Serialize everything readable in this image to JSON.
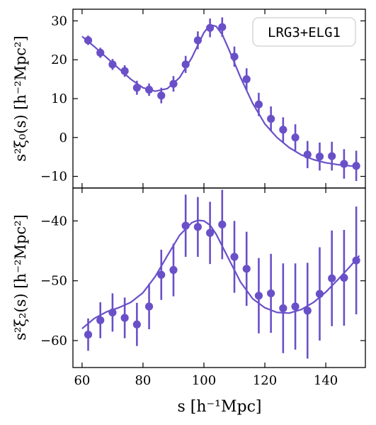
{
  "colors": {
    "series": "#6a50c8",
    "axis": "#000000",
    "legend_border": "#cfcfcf",
    "background": "#ffffff"
  },
  "chart_data": [
    {
      "type": "scatter",
      "panel": "top",
      "legend": {
        "label": "LRG3+ELG1",
        "placement": "top-right"
      },
      "ylabel": "s²ξ₀(s) [h⁻²Mpc²]",
      "xlim": [
        57,
        153
      ],
      "ylim": [
        -13,
        33
      ],
      "x_ticks": [
        60,
        80,
        100,
        120,
        140
      ],
      "y_ticks": [
        -10,
        0,
        10,
        20,
        30
      ],
      "y_tick_labels": [
        "−10",
        "0",
        "10",
        "20",
        "30"
      ],
      "series": [
        {
          "points": [
            {
              "x": 62,
              "y": 25.0,
              "err": 1.2
            },
            {
              "x": 66,
              "y": 21.8,
              "err": 1.3
            },
            {
              "x": 70,
              "y": 18.8,
              "err": 1.4
            },
            {
              "x": 74,
              "y": 17.1,
              "err": 1.5
            },
            {
              "x": 78,
              "y": 12.8,
              "err": 1.8
            },
            {
              "x": 82,
              "y": 12.3,
              "err": 1.6
            },
            {
              "x": 86,
              "y": 10.8,
              "err": 2.0
            },
            {
              "x": 90,
              "y": 13.8,
              "err": 2.0
            },
            {
              "x": 94,
              "y": 18.8,
              "err": 2.2
            },
            {
              "x": 98,
              "y": 25.0,
              "err": 2.3
            },
            {
              "x": 102,
              "y": 28.2,
              "err": 2.4
            },
            {
              "x": 106,
              "y": 28.4,
              "err": 2.5
            },
            {
              "x": 110,
              "y": 20.8,
              "err": 2.6
            },
            {
              "x": 114,
              "y": 15.0,
              "err": 2.8
            },
            {
              "x": 118,
              "y": 8.5,
              "err": 3.0
            },
            {
              "x": 122,
              "y": 4.8,
              "err": 3.2
            },
            {
              "x": 126,
              "y": 2.0,
              "err": 3.2
            },
            {
              "x": 130,
              "y": 0.0,
              "err": 3.4
            },
            {
              "x": 134,
              "y": -4.4,
              "err": 3.5
            },
            {
              "x": 138,
              "y": -4.9,
              "err": 3.6
            },
            {
              "x": 142,
              "y": -4.8,
              "err": 3.7
            },
            {
              "x": 146,
              "y": -6.8,
              "err": 3.8
            },
            {
              "x": 150,
              "y": -7.3,
              "err": 3.9
            }
          ],
          "model": [
            [
              60,
              26.0
            ],
            [
              64,
              23.4
            ],
            [
              68,
              20.6
            ],
            [
              72,
              17.8
            ],
            [
              76,
              15.0
            ],
            [
              80,
              12.8
            ],
            [
              84,
              11.9
            ],
            [
              88,
              12.6
            ],
            [
              92,
              15.4
            ],
            [
              96,
              20.5
            ],
            [
              100,
              27.0
            ],
            [
              102,
              29.0
            ],
            [
              104,
              28.6
            ],
            [
              106,
              26.5
            ],
            [
              108,
              23.0
            ],
            [
              112,
              15.5
            ],
            [
              116,
              8.8
            ],
            [
              120,
              3.5
            ],
            [
              124,
              0.0
            ],
            [
              128,
              -2.6
            ],
            [
              132,
              -4.5
            ],
            [
              136,
              -5.7
            ],
            [
              140,
              -6.5
            ],
            [
              144,
              -7.0
            ],
            [
              148,
              -7.3
            ],
            [
              151,
              -7.4
            ]
          ]
        }
      ]
    },
    {
      "type": "scatter",
      "panel": "bottom",
      "ylabel": "s²ξ₂(s) [h⁻²Mpc²]",
      "xlabel": "s [h⁻¹Mpc]",
      "xlim": [
        57,
        153
      ],
      "ylim": [
        -64.5,
        -34.5
      ],
      "x_ticks": [
        60,
        80,
        100,
        120,
        140
      ],
      "x_tick_labels": [
        "60",
        "80",
        "100",
        "120",
        "140"
      ],
      "y_ticks": [
        -60,
        -50,
        -40
      ],
      "y_tick_labels": [
        "−60",
        "−50",
        "−40"
      ],
      "series": [
        {
          "points": [
            {
              "x": 62,
              "y": -59.0,
              "err": 2.7
            },
            {
              "x": 66,
              "y": -56.6,
              "err": 3.0
            },
            {
              "x": 70,
              "y": -55.3,
              "err": 3.2
            },
            {
              "x": 74,
              "y": -56.2,
              "err": 3.4
            },
            {
              "x": 78,
              "y": -57.3,
              "err": 3.6
            },
            {
              "x": 82,
              "y": -54.3,
              "err": 3.8
            },
            {
              "x": 86,
              "y": -49.0,
              "err": 4.2
            },
            {
              "x": 90,
              "y": -48.2,
              "err": 4.4
            },
            {
              "x": 94,
              "y": -40.8,
              "err": 5.2
            },
            {
              "x": 98,
              "y": -41.0,
              "err": 5.0
            },
            {
              "x": 102,
              "y": -42.0,
              "err": 5.2
            },
            {
              "x": 106,
              "y": -40.6,
              "err": 5.8
            },
            {
              "x": 110,
              "y": -46.0,
              "err": 6.0
            },
            {
              "x": 114,
              "y": -48.0,
              "err": 6.2
            },
            {
              "x": 118,
              "y": -52.5,
              "err": 6.3
            },
            {
              "x": 122,
              "y": -52.1,
              "err": 6.6
            },
            {
              "x": 126,
              "y": -54.6,
              "err": 7.5
            },
            {
              "x": 130,
              "y": -54.3,
              "err": 7.2
            },
            {
              "x": 134,
              "y": -55.0,
              "err": 8.0
            },
            {
              "x": 138,
              "y": -52.2,
              "err": 7.8
            },
            {
              "x": 142,
              "y": -49.6,
              "err": 8.0
            },
            {
              "x": 146,
              "y": -49.5,
              "err": 8.0
            },
            {
              "x": 150,
              "y": -46.6,
              "err": 9.0
            }
          ],
          "model": [
            [
              60,
              -58.0
            ],
            [
              64,
              -56.3
            ],
            [
              68,
              -55.2
            ],
            [
              72,
              -54.5
            ],
            [
              76,
              -53.6
            ],
            [
              80,
              -52.0
            ],
            [
              84,
              -49.3
            ],
            [
              88,
              -45.8
            ],
            [
              92,
              -42.4
            ],
            [
              96,
              -40.3
            ],
            [
              98,
              -39.9
            ],
            [
              100,
              -40.0
            ],
            [
              102,
              -40.7
            ],
            [
              104,
              -42.2
            ],
            [
              108,
              -46.2
            ],
            [
              112,
              -50.2
            ],
            [
              116,
              -53.0
            ],
            [
              120,
              -54.5
            ],
            [
              124,
              -55.3
            ],
            [
              128,
              -55.4
            ],
            [
              132,
              -54.8
            ],
            [
              136,
              -53.6
            ],
            [
              140,
              -51.9
            ],
            [
              144,
              -49.8
            ],
            [
              148,
              -47.6
            ],
            [
              151,
              -45.8
            ]
          ]
        }
      ]
    }
  ]
}
